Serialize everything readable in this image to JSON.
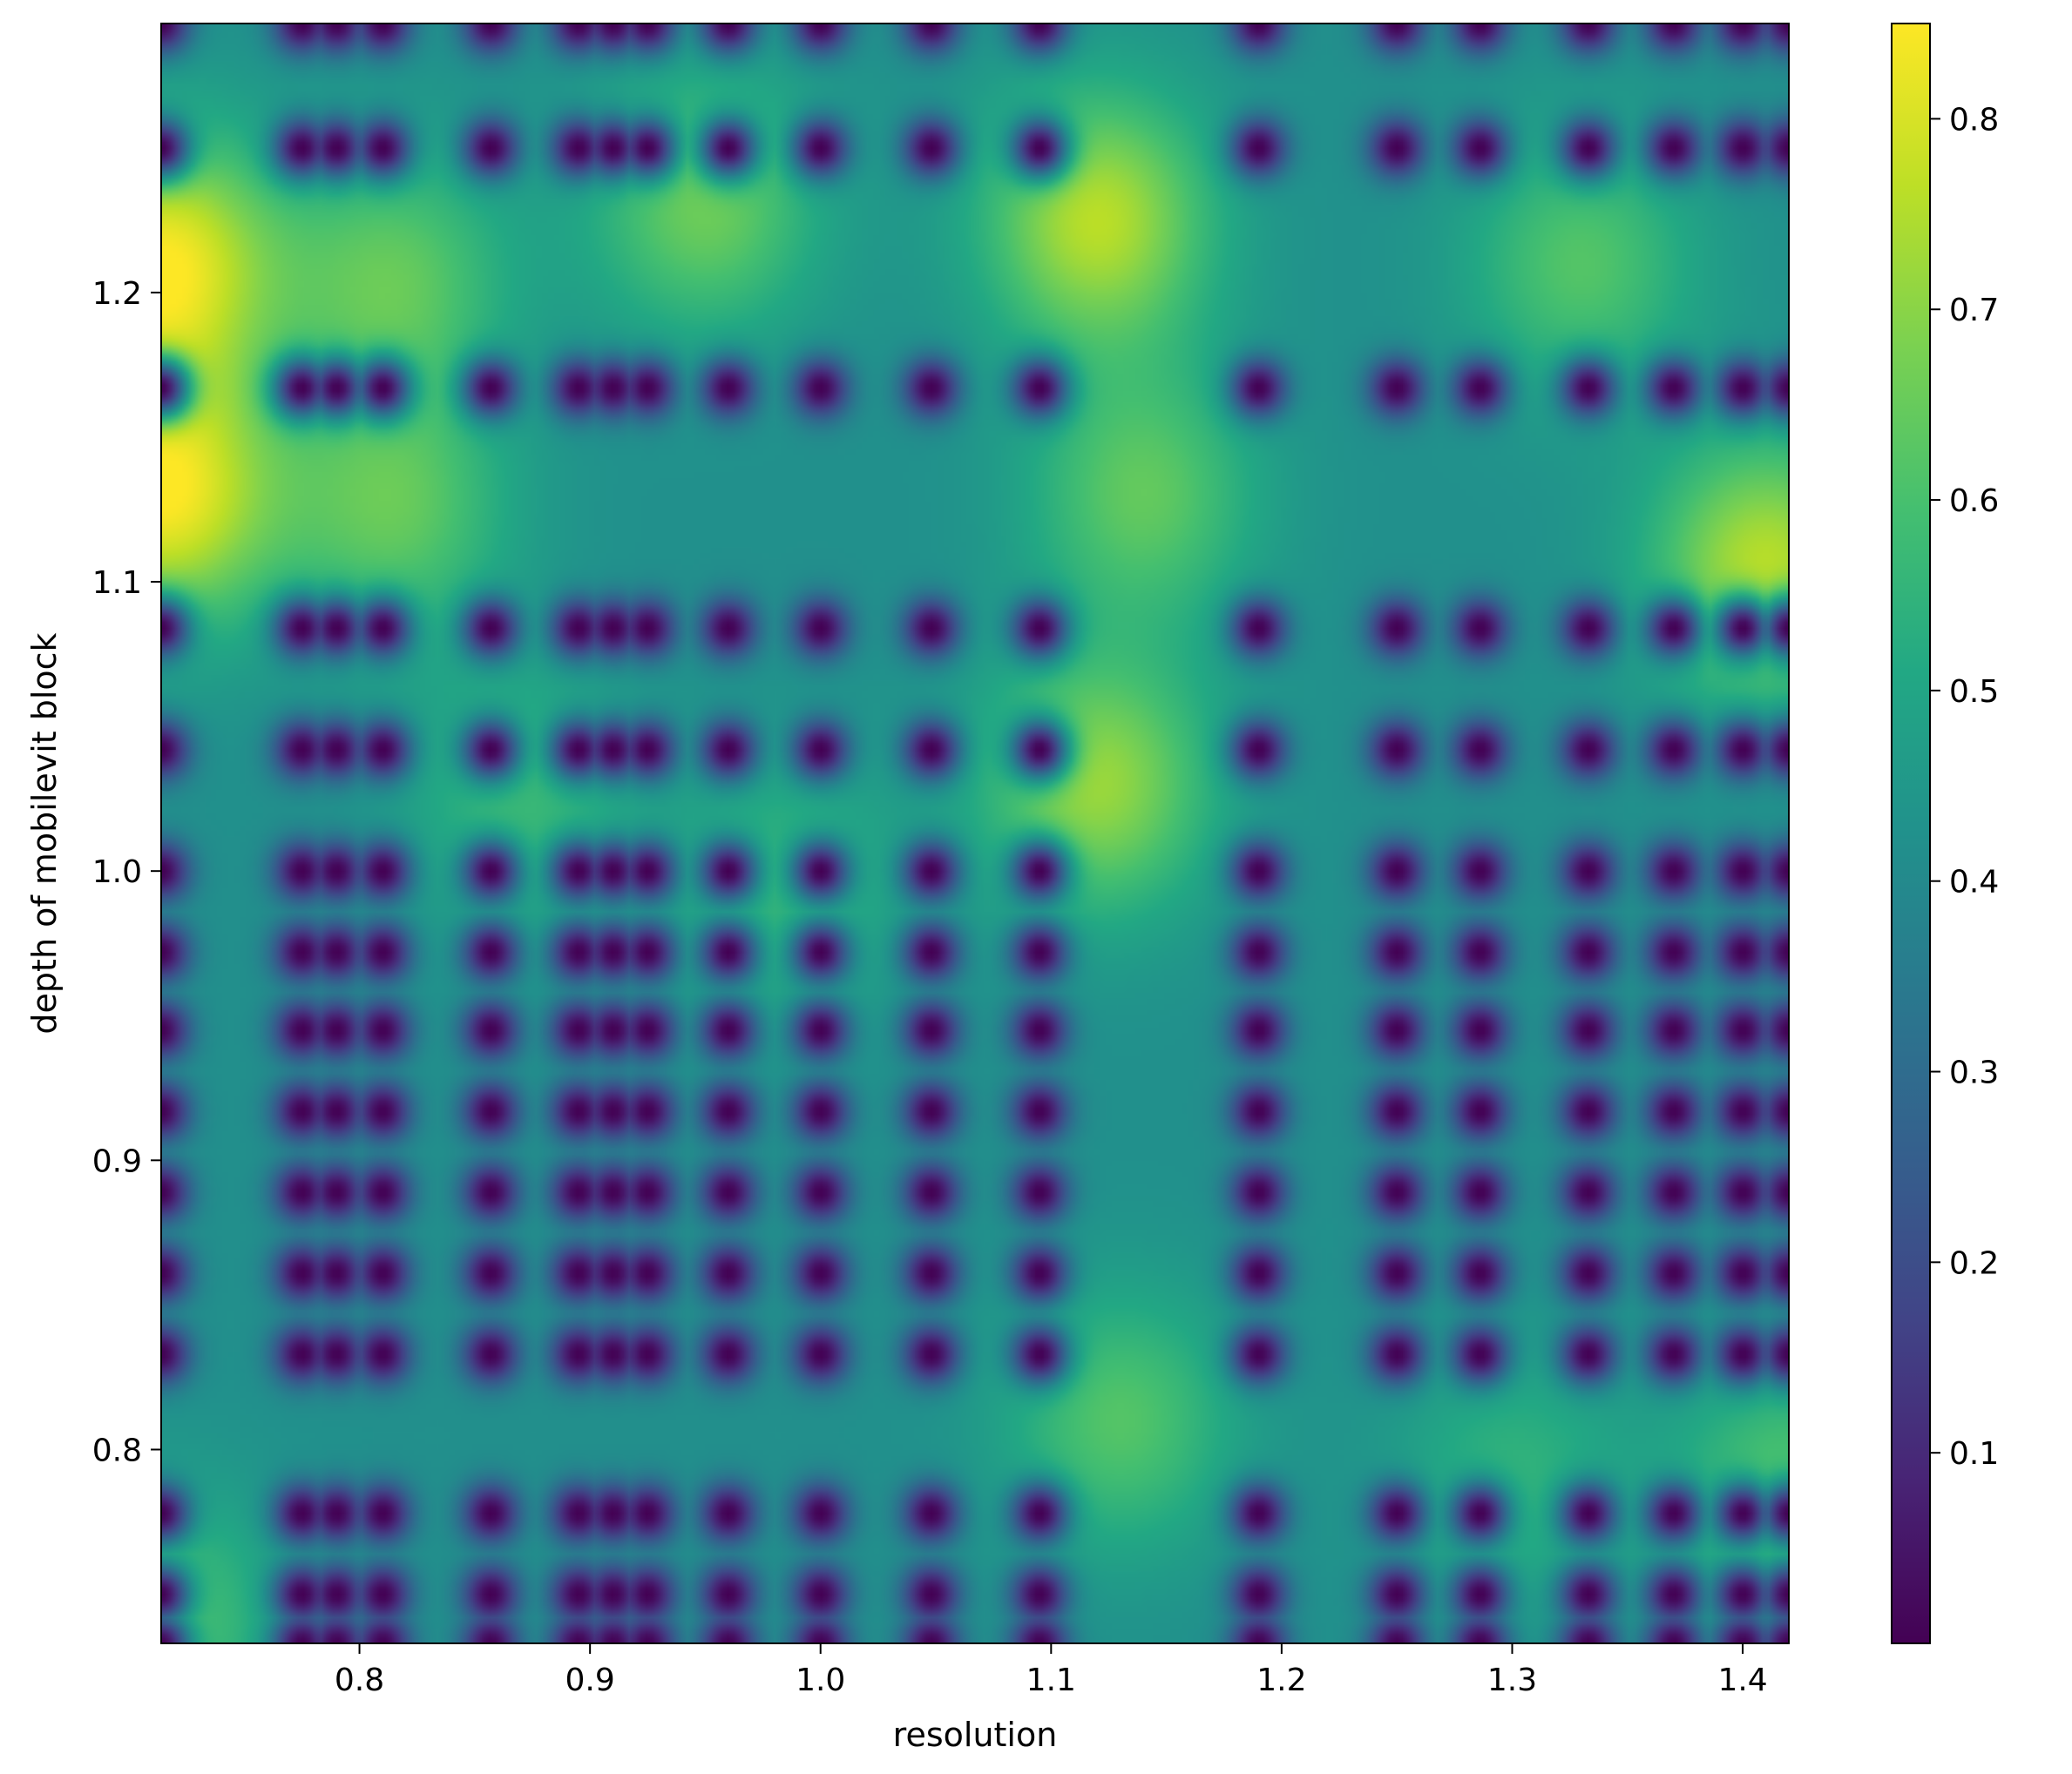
{
  "chart_data": {
    "type": "heatmap",
    "title": "",
    "xlabel": "resolution",
    "ylabel": "depth of mobilevit block",
    "xlim": [
      0.714,
      1.42
    ],
    "ylim": [
      0.733,
      1.293
    ],
    "x_ticks": [
      "0.8",
      "0.9",
      "1.0",
      "1.1",
      "1.2",
      "1.3",
      "1.4"
    ],
    "y_ticks": [
      "0.8",
      "0.9",
      "1.0",
      "1.1",
      "1.2"
    ],
    "colorbar": {
      "colormap": "viridis",
      "range": [
        0.0,
        0.85
      ],
      "ticks": [
        "0.1",
        "0.2",
        "0.3",
        "0.4",
        "0.5",
        "0.6",
        "0.7",
        "0.8"
      ]
    },
    "background": 0.42,
    "hotspots": [
      {
        "x": 0.714,
        "y": 1.21,
        "value": 0.84
      },
      {
        "x": 0.714,
        "y": 1.13,
        "value": 0.84
      },
      {
        "x": 1.12,
        "y": 1.225,
        "value": 0.76
      },
      {
        "x": 1.41,
        "y": 1.105,
        "value": 0.76
      },
      {
        "x": 1.12,
        "y": 1.03,
        "value": 0.72
      },
      {
        "x": 1.14,
        "y": 1.13,
        "value": 0.64
      },
      {
        "x": 0.95,
        "y": 1.23,
        "value": 0.66
      },
      {
        "x": 0.815,
        "y": 1.205,
        "value": 0.64
      },
      {
        "x": 0.815,
        "y": 1.125,
        "value": 0.64
      },
      {
        "x": 1.33,
        "y": 1.21,
        "value": 0.62
      },
      {
        "x": 0.985,
        "y": 0.995,
        "value": 0.56
      },
      {
        "x": 0.87,
        "y": 1.025,
        "value": 0.57
      },
      {
        "x": 1.13,
        "y": 0.81,
        "value": 0.62
      },
      {
        "x": 1.3,
        "y": 0.79,
        "value": 0.55
      },
      {
        "x": 1.42,
        "y": 0.785,
        "value": 0.62
      },
      {
        "x": 0.714,
        "y": 0.74,
        "value": 0.62
      }
    ],
    "cold_rows": [
      1.293,
      1.25,
      1.167,
      1.084,
      1.042,
      1.0,
      0.972,
      0.945,
      0.917,
      0.889,
      0.861,
      0.833,
      0.778,
      0.75,
      0.733
    ],
    "cold_cols": [
      0.714,
      0.775,
      0.79,
      0.81,
      0.857,
      0.895,
      0.91,
      0.925,
      0.96,
      1.0,
      1.048,
      1.095,
      1.19,
      1.25,
      1.286,
      1.333,
      1.37,
      1.4,
      1.42
    ],
    "minimum_value": 0.0
  }
}
